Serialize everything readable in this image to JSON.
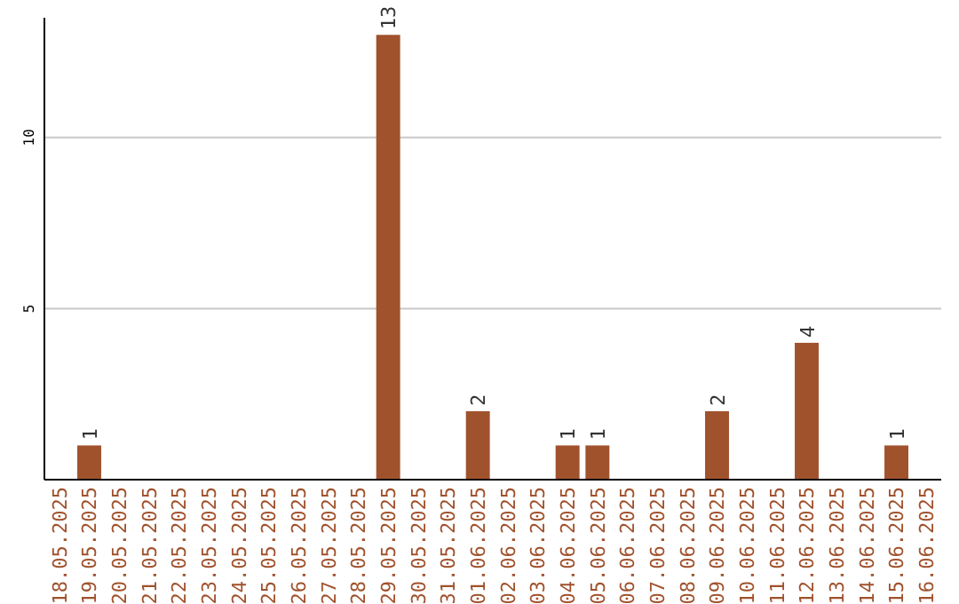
{
  "chart_data": {
    "type": "bar",
    "categories": [
      "18.05.2025",
      "19.05.2025",
      "20.05.2025",
      "21.05.2025",
      "22.05.2025",
      "23.05.2025",
      "24.05.2025",
      "25.05.2025",
      "26.05.2025",
      "27.05.2025",
      "28.05.2025",
      "29.05.2025",
      "30.05.2025",
      "31.05.2025",
      "01.06.2025",
      "02.06.2025",
      "03.06.2025",
      "04.06.2025",
      "05.06.2025",
      "06.06.2025",
      "07.06.2025",
      "08.06.2025",
      "09.06.2025",
      "10.06.2025",
      "11.06.2025",
      "12.06.2025",
      "13.06.2025",
      "14.06.2025",
      "15.06.2025",
      "16.06.2025"
    ],
    "values": [
      0,
      1,
      0,
      0,
      0,
      0,
      0,
      0,
      0,
      0,
      0,
      13,
      0,
      0,
      2,
      0,
      0,
      1,
      1,
      0,
      0,
      0,
      2,
      0,
      0,
      4,
      0,
      0,
      1,
      0
    ],
    "value_labels": [
      null,
      "1",
      null,
      null,
      null,
      null,
      null,
      null,
      null,
      null,
      null,
      "13",
      null,
      null,
      "2",
      null,
      null,
      "1",
      "1",
      null,
      null,
      null,
      "2",
      null,
      null,
      "4",
      null,
      null,
      "1",
      null
    ],
    "color": "#a0522d",
    "ylim": [
      0,
      13.5
    ],
    "yticks": [
      5,
      10
    ],
    "grid": "y"
  }
}
